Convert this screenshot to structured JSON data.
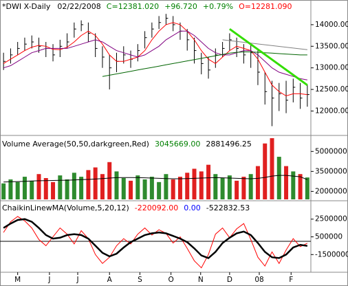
{
  "chart_data": [
    {
      "type": "ohlc",
      "title": "*DWI X-Daily",
      "date": "02/22/2008",
      "readings": [
        {
          "text": "C=12381.020",
          "color": "#008000"
        },
        {
          "text": "+96.720",
          "color": "#008000"
        },
        {
          "text": "+0.79%",
          "color": "#008000"
        },
        {
          "text": "O=12281.090",
          "color": "#ff0000"
        }
      ],
      "x": [
        0,
        1,
        2,
        3,
        4,
        5,
        6,
        7,
        8,
        9,
        10,
        11,
        12,
        13,
        14,
        15,
        16,
        17,
        18,
        19,
        20,
        21,
        22,
        23,
        24,
        25,
        26,
        27,
        28,
        29,
        30,
        31,
        32,
        33,
        34,
        35,
        36,
        37,
        38,
        39,
        40,
        41,
        42,
        43
      ],
      "high": [
        13350,
        13450,
        13600,
        13700,
        13750,
        13700,
        13600,
        13550,
        13650,
        13800,
        14050,
        14100,
        14050,
        13800,
        13500,
        13300,
        13350,
        13500,
        13400,
        13550,
        13850,
        14050,
        14200,
        14250,
        14200,
        14050,
        13900,
        13700,
        13350,
        13250,
        13450,
        13600,
        13800,
        13700,
        13550,
        13550,
        13400,
        12900,
        12700,
        12650,
        12700,
        12750,
        12650,
        12600
      ],
      "low": [
        12950,
        13100,
        13300,
        13400,
        13450,
        13350,
        13250,
        13150,
        13250,
        13450,
        13700,
        13850,
        13600,
        13250,
        13000,
        12500,
        12900,
        13100,
        13000,
        13150,
        13450,
        13700,
        13900,
        14000,
        13850,
        13650,
        13400,
        13100,
        12850,
        12750,
        13000,
        13250,
        13400,
        13250,
        13100,
        13000,
        12600,
        12150,
        11650,
        12000,
        11950,
        12200,
        12050,
        12100
      ],
      "close": [
        13150,
        13300,
        13450,
        13550,
        13600,
        13500,
        13450,
        13300,
        13500,
        13600,
        13900,
        14000,
        13800,
        13450,
        13250,
        13000,
        13150,
        13300,
        13200,
        13400,
        13700,
        13900,
        14050,
        14150,
        14000,
        13850,
        13650,
        13400,
        13100,
        12950,
        13300,
        13450,
        13650,
        13450,
        13300,
        13350,
        12900,
        12450,
        12300,
        12400,
        12250,
        12550,
        12300,
        12381.02
      ],
      "bar_color": "#000000",
      "series": [
        {
          "color": "#ff0000",
          "width": 1,
          "values": [
            13100,
            13200,
            13300,
            13400,
            13480,
            13520,
            13500,
            13430,
            13420,
            13480,
            13600,
            13750,
            13850,
            13750,
            13550,
            13300,
            13150,
            13150,
            13200,
            13250,
            13400,
            13650,
            13850,
            14000,
            14050,
            14000,
            13850,
            13650,
            13400,
            13200,
            13100,
            13250,
            13400,
            13500,
            13450,
            13400,
            13200,
            12900,
            12600,
            12450,
            12350,
            12400,
            12400,
            12380
          ]
        },
        {
          "color": "#800080",
          "width": 1,
          "values": [
            13000,
            13050,
            13150,
            13250,
            13350,
            13400,
            13450,
            13450,
            13450,
            13450,
            13500,
            13550,
            13600,
            13650,
            13600,
            13500,
            13400,
            13350,
            13300,
            13250,
            13300,
            13400,
            13500,
            13650,
            13750,
            13850,
            13850,
            13750,
            13600,
            13450,
            13350,
            13300,
            13300,
            13350,
            13400,
            13400,
            13300,
            13150,
            13000,
            12900,
            12850,
            12800,
            12750,
            12720
          ]
        },
        {
          "color": "#006400",
          "width": 1,
          "values": [
            null,
            null,
            null,
            null,
            null,
            null,
            null,
            null,
            null,
            null,
            null,
            null,
            null,
            null,
            12800,
            12830,
            12860,
            12890,
            12920,
            12950,
            12980,
            13010,
            13040,
            13070,
            13100,
            13130,
            13160,
            13190,
            13220,
            13250,
            13280,
            13310,
            13340,
            13360,
            13370,
            13370,
            13360,
            13350,
            13340,
            13330,
            13320,
            13310,
            13300,
            13300
          ]
        },
        {
          "color": "#808080",
          "width": 1,
          "x": [
            31,
            43
          ],
          "values": [
            13650,
            13420
          ]
        },
        {
          "color": "#33dd00",
          "width": 3,
          "x": [
            32,
            43
          ],
          "values": [
            13900,
            12600
          ]
        }
      ],
      "xlim": [
        -0.5,
        43.5
      ],
      "ylim": [
        11450,
        14540
      ],
      "yticks": [
        {
          "value": 12000,
          "label": "12000.00"
        },
        {
          "value": 12500,
          "label": "12500.00"
        },
        {
          "value": 13000,
          "label": "13000.00"
        },
        {
          "value": 13500,
          "label": "13500.00"
        },
        {
          "value": 14000,
          "label": "14000.00"
        }
      ]
    },
    {
      "type": "bar",
      "title": "Volume Average(50,50,darkgreen,Red)",
      "readings": [
        {
          "text": "3045669.00",
          "color": "#008000"
        },
        {
          "text": "2881496.25",
          "color": "#000000"
        }
      ],
      "up_color": "#2e8b2e",
      "down_color": "#e02020",
      "values": [
        2600000,
        2900000,
        2700000,
        3100000,
        2800000,
        3300000,
        3000000,
        2700000,
        3200000,
        2900000,
        3400000,
        3100000,
        3600000,
        3800000,
        3300000,
        4200000,
        3500000,
        3000000,
        2800000,
        3200000,
        2900000,
        3100000,
        2700000,
        3300000,
        2900000,
        3100000,
        3400000,
        3700000,
        3500000,
        4000000,
        3300000,
        3000000,
        3200000,
        2800000,
        3100000,
        3300000,
        3900000,
        5600000,
        6000000,
        4600000,
        3900000,
        3500000,
        3300000,
        3045669
      ],
      "series": [
        {
          "color": "#000000",
          "width": 1,
          "values": [
            2700000,
            2720000,
            2740000,
            2760000,
            2780000,
            2800000,
            2810000,
            2820000,
            2830000,
            2840000,
            2860000,
            2880000,
            2900000,
            2930000,
            2960000,
            3000000,
            3030000,
            3040000,
            3040000,
            3030000,
            3020000,
            3000000,
            2980000,
            2960000,
            2950000,
            2950000,
            2960000,
            2980000,
            3000000,
            3020000,
            3030000,
            3020000,
            3000000,
            2980000,
            2960000,
            2950000,
            2980000,
            3050000,
            3150000,
            3200000,
            3200000,
            3150000,
            3100000,
            2881496.25
          ]
        }
      ],
      "xlim": [
        -0.5,
        43.5
      ],
      "ylim": [
        1400000,
        6100000
      ],
      "yticks": [
        2000000,
        3500000,
        5000000
      ]
    },
    {
      "type": "line",
      "title": "ChaikinLinewMA(Volume,5,20,12)",
      "readings": [
        {
          "text": "-220092.00",
          "color": "#ff0000"
        },
        {
          "text": "0.00",
          "color": "#0000ff"
        },
        {
          "text": "-522832.53",
          "color": "#000000"
        }
      ],
      "hline": 0,
      "series": [
        {
          "color": "#ff0000",
          "width": 1,
          "values": [
            1000000,
            2200000,
            2800000,
            2300000,
            1500000,
            200000,
            -500000,
            500000,
            1500000,
            800000,
            -300000,
            1200000,
            300000,
            -1500000,
            -2500000,
            -1800000,
            -500000,
            300000,
            -300000,
            800000,
            1500000,
            700000,
            1300000,
            900000,
            -200000,
            500000,
            -800000,
            -2200000,
            -3000000,
            -1500000,
            800000,
            1500000,
            400000,
            1400000,
            2000000,
            200000,
            -1800000,
            -2800000,
            -1200000,
            -2500000,
            -1000000,
            300000,
            -600000,
            -220092
          ]
        },
        {
          "color": "#000000",
          "width": 2.5,
          "values": [
            1500000,
            2000000,
            2400000,
            2500000,
            2200000,
            1500000,
            700000,
            300000,
            400000,
            700000,
            800000,
            700000,
            300000,
            -500000,
            -1300000,
            -1700000,
            -1400000,
            -700000,
            -100000,
            300000,
            700000,
            900000,
            1000000,
            900000,
            600000,
            300000,
            -100000,
            -800000,
            -1600000,
            -1900000,
            -1200000,
            -200000,
            400000,
            900000,
            1100000,
            700000,
            -200000,
            -1200000,
            -1800000,
            -1900000,
            -1500000,
            -700000,
            -400000,
            -522832.53
          ]
        }
      ],
      "xlim": [
        -0.5,
        43.5
      ],
      "ylim": [
        -3340000,
        4420000
      ],
      "yticks": [
        -1500000,
        500000,
        2500000
      ],
      "xticks": [
        {
          "value": 2,
          "label": "M"
        },
        {
          "value": 6.5,
          "label": "J"
        },
        {
          "value": 10.5,
          "label": "J"
        },
        {
          "value": 15,
          "label": "A"
        },
        {
          "value": 19.3,
          "label": "S"
        },
        {
          "value": 23.7,
          "label": "O"
        },
        {
          "value": 27.9,
          "label": "N"
        },
        {
          "value": 32,
          "label": "D"
        },
        {
          "value": 36.2,
          "label": "08"
        },
        {
          "value": 40.7,
          "label": "F"
        }
      ]
    }
  ]
}
